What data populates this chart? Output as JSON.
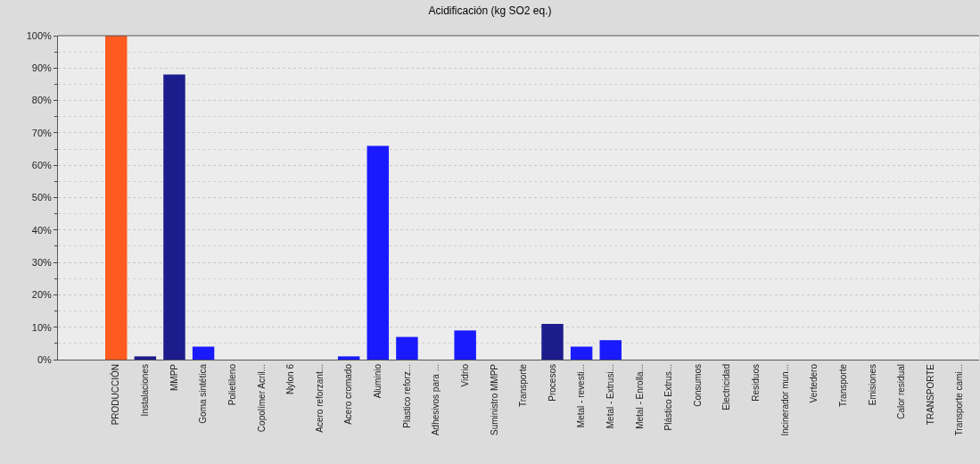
{
  "chart_data": {
    "type": "bar",
    "title": "Acidificación (kg SO2 eq.)",
    "categories": [
      "PRODUCCIÓN",
      "Instalaciones",
      "MMPP",
      "Goma sintética",
      "Polietileno",
      "Copolímer Acril...",
      "Nylon 6",
      "Acero reforzant...",
      "Acero cromado",
      "Aluminio",
      "Plastico reforz...",
      "Adhesivos para ...",
      "Vidrio",
      "Suministro MMPP",
      "Transporte",
      "Procesos",
      "Metal - revesti...",
      "Metal - Extrusi...",
      "Metal - Enrolla...",
      "Plástico Extrus...",
      "Consumos",
      "Electricidad",
      "Residuos",
      "Incinerador mun...",
      "Vertedero",
      "Transporte",
      "Emisiones",
      "Calor residual",
      "TRANSPORTE",
      "Transporte cami..."
    ],
    "values": [
      100,
      1,
      88,
      4,
      0,
      0,
      0,
      0,
      1,
      66,
      7,
      0,
      9,
      0,
      0,
      11,
      4,
      6,
      0,
      0,
      0,
      0,
      0,
      0,
      0,
      0,
      0,
      0,
      0,
      0
    ],
    "colors": [
      "#ff5a1f",
      "#1c1c8c",
      "#1c1c8c",
      "#1a1aff",
      "#1a1aff",
      "#1a1aff",
      "#1a1aff",
      "#1a1aff",
      "#1a1aff",
      "#1a1aff",
      "#1a1aff",
      "#1a1aff",
      "#1a1aff",
      "#1c1c8c",
      "#1a1aff",
      "#1c1c8c",
      "#1a1aff",
      "#1a1aff",
      "#1a1aff",
      "#1a1aff",
      "#1c1c8c",
      "#1a1aff",
      "#1c1c8c",
      "#1a1aff",
      "#1a1aff",
      "#1a1aff",
      "#1a1aff",
      "#1a1aff",
      "#1c1c8c",
      "#1a1aff"
    ],
    "ylim": [
      0,
      100
    ],
    "yticks": [
      {
        "value": 0,
        "label": "0%"
      },
      {
        "value": 10,
        "label": "10%"
      },
      {
        "value": 20,
        "label": "20%"
      },
      {
        "value": 30,
        "label": "30%"
      },
      {
        "value": 40,
        "label": "40%"
      },
      {
        "value": 50,
        "label": "50%"
      },
      {
        "value": 60,
        "label": "60%"
      },
      {
        "value": 70,
        "label": "70%"
      },
      {
        "value": 80,
        "label": "80%"
      },
      {
        "value": 90,
        "label": "90%"
      },
      {
        "value": 100,
        "label": "100%"
      }
    ],
    "grid": "y"
  }
}
